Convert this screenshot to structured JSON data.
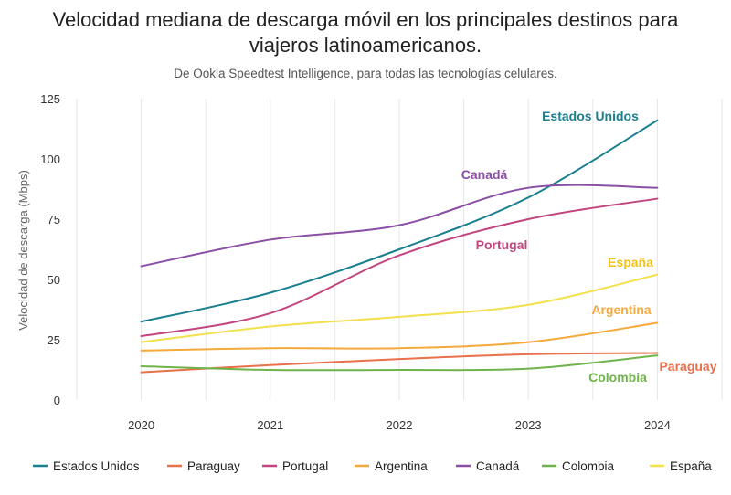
{
  "chart_data": {
    "type": "line",
    "title_line1": "Velocidad mediana de descarga móvil en los principales destinos para",
    "title_line2": "viajeros latinoamericanos.",
    "subtitle": "De Ookla Speedtest Intelligence, para todas las tecnologías celulares.",
    "ylabel": "Velocidad de descarga (Mbps)",
    "xlabel": "",
    "x": [
      2020,
      2021,
      2022,
      2023,
      2024
    ],
    "x_ticks": [
      "2020",
      "2021",
      "2022",
      "2023",
      "2024"
    ],
    "y_ticks": [
      "0",
      "25",
      "50",
      "75",
      "100",
      "125"
    ],
    "ylim": [
      0,
      125
    ],
    "xlim": [
      2019.5,
      2024.5
    ],
    "grid": "vertical",
    "legend_position": "bottom",
    "series": [
      {
        "name": "Estados Unidos",
        "color": "#1a7f8e",
        "values": [
          32.5,
          44.5,
          62.5,
          84,
          116
        ]
      },
      {
        "name": "Paraguay",
        "color": "#e8704a",
        "values": [
          11.5,
          14.5,
          17,
          19,
          19.5
        ]
      },
      {
        "name": "Portugal",
        "color": "#c2457f",
        "values": [
          26.5,
          36,
          60,
          75,
          83.5
        ]
      },
      {
        "name": "Argentina",
        "color": "#f5a93b",
        "values": [
          20.5,
          21.5,
          21.5,
          24,
          32
        ]
      },
      {
        "name": "Canadá",
        "color": "#8b4fa6",
        "values": [
          55.5,
          66.5,
          72.5,
          88,
          88
        ]
      },
      {
        "name": "Colombia",
        "color": "#6fb34a",
        "values": [
          14,
          12.5,
          12.5,
          13,
          18.5
        ]
      },
      {
        "name": "España",
        "color": "#f2e14c",
        "values": [
          24,
          30.5,
          34.5,
          39.5,
          52
        ]
      }
    ],
    "annotations": [
      {
        "text": "Estados Unidos",
        "series": "Estados Unidos"
      },
      {
        "text": "Canadá",
        "series": "Canadá"
      },
      {
        "text": "Portugal",
        "series": "Portugal"
      },
      {
        "text": "España",
        "series": "España"
      },
      {
        "text": "Argentina",
        "series": "Argentina"
      },
      {
        "text": "Paraguay",
        "series": "Paraguay"
      },
      {
        "text": "Colombia",
        "series": "Colombia"
      }
    ]
  }
}
